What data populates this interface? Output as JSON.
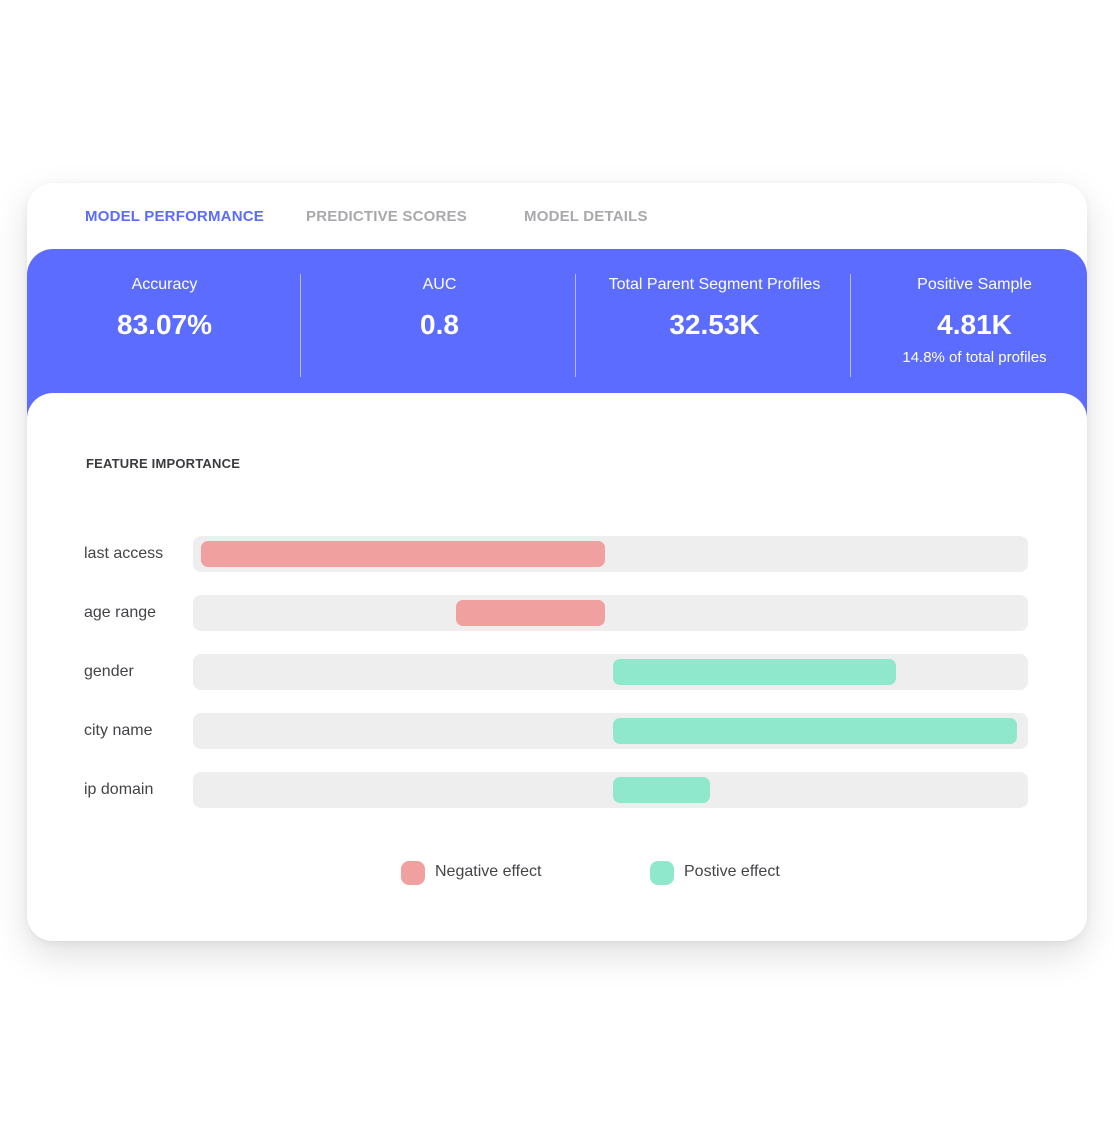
{
  "colors": {
    "accent": "#5b6bff",
    "band": "#5b6cff",
    "negative": "#f1a0a0",
    "positive": "#90e8cc",
    "track": "#eeeeee"
  },
  "tabs": [
    {
      "label": "MODEL PERFORMANCE",
      "active": true
    },
    {
      "label": "PREDICTIVE SCORES",
      "active": false
    },
    {
      "label": "MODEL DETAILS",
      "active": false
    }
  ],
  "metrics": [
    {
      "label": "Accuracy",
      "value": "83.07%",
      "sub": ""
    },
    {
      "label": "AUC",
      "value": "0.8",
      "sub": ""
    },
    {
      "label": "Total Parent Segment Profiles",
      "value": "32.53K",
      "sub": ""
    },
    {
      "label": "Positive Sample",
      "value": "4.81K",
      "sub": "14.8% of total profiles"
    }
  ],
  "feature_importance": {
    "title": "FEATURE IMPORTANCE",
    "features": [
      {
        "name": "last access",
        "effect": "negative",
        "value": 1.0
      },
      {
        "name": "age range",
        "effect": "negative",
        "value": 0.37
      },
      {
        "name": "gender",
        "effect": "positive",
        "value": 0.7
      },
      {
        "name": "city name",
        "effect": "positive",
        "value": 1.0
      },
      {
        "name": "ip domain",
        "effect": "positive",
        "value": 0.24
      }
    ],
    "legend": {
      "negative": "Negative effect",
      "positive": "Postive effect"
    }
  },
  "chart_data": {
    "type": "bar",
    "title": "FEATURE IMPORTANCE",
    "categories": [
      "last access",
      "age range",
      "gender",
      "city name",
      "ip domain"
    ],
    "values": [
      -1.0,
      -0.37,
      0.7,
      1.0,
      0.24
    ],
    "xlim": [
      -1,
      1
    ],
    "legend": [
      "Negative effect",
      "Postive effect"
    ],
    "grid": false
  }
}
